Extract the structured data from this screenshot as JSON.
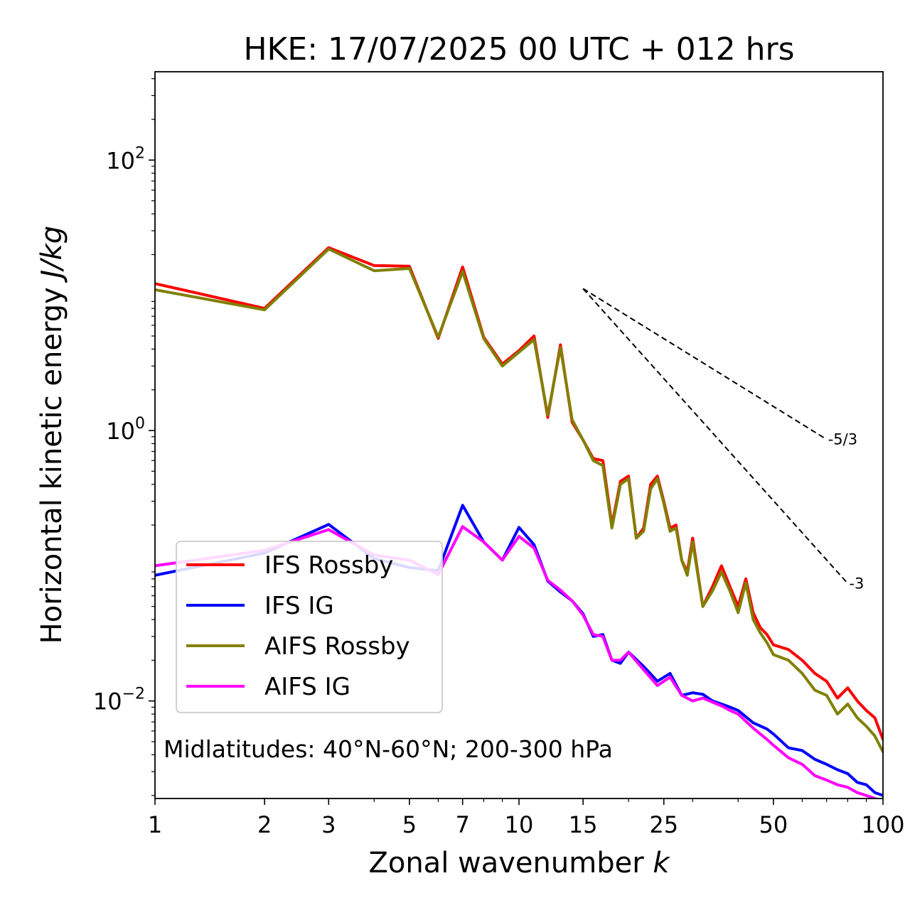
{
  "chart_data": {
    "type": "line",
    "title": "HKE: 17/07/2025 00 UTC + 012 hrs",
    "xlabel": "Zonal wavenumber",
    "xlabel_var": "k",
    "ylabel": "Horizontal kinetic energy",
    "ylabel_unit": "J/kg",
    "xscale": "log",
    "yscale": "log",
    "xlim": [
      1,
      100
    ],
    "ylim": [
      0.0019,
      450
    ],
    "xticks": [
      1,
      2,
      3,
      5,
      7,
      10,
      15,
      25,
      50,
      100
    ],
    "xtick_labels": [
      "1",
      "2",
      "3",
      "5",
      "7",
      "10",
      "15",
      "25",
      "50",
      "100"
    ],
    "yticks": [
      0.01,
      1,
      100
    ],
    "ytick_labels": [
      {
        "base": "10",
        "exp": "−2"
      },
      {
        "base": "10",
        "exp": "0"
      },
      {
        "base": "10",
        "exp": "2"
      }
    ],
    "annotation": "Midlatitudes: 40°N-60°N; 200-300 hPa",
    "legend_position": "lower-left",
    "series": [
      {
        "name": "IFS Rossby",
        "color": "#ff0000",
        "x": [
          1,
          2,
          3,
          4,
          5,
          6,
          7,
          8,
          9,
          10,
          11,
          12,
          13,
          14,
          15,
          16,
          17,
          18,
          19,
          20,
          21,
          22,
          23,
          24,
          25,
          26,
          27,
          28,
          29,
          30,
          32,
          34,
          36,
          38,
          40,
          42,
          44,
          46,
          48,
          50,
          55,
          60,
          65,
          70,
          75,
          80,
          85,
          90,
          95,
          100
        ],
        "y": [
          12.2,
          8.0,
          22.5,
          16.6,
          16.4,
          4.8,
          16.2,
          4.9,
          3.1,
          3.9,
          5.0,
          1.25,
          4.3,
          1.15,
          0.85,
          0.62,
          0.6,
          0.2,
          0.42,
          0.46,
          0.16,
          0.19,
          0.4,
          0.46,
          0.3,
          0.19,
          0.2,
          0.11,
          0.09,
          0.16,
          0.05,
          0.07,
          0.1,
          0.07,
          0.05,
          0.08,
          0.045,
          0.035,
          0.031,
          0.026,
          0.024,
          0.02,
          0.016,
          0.014,
          0.0105,
          0.0125,
          0.01,
          0.0085,
          0.0075,
          0.0052
        ]
      },
      {
        "name": "IFS IG",
        "color": "#0000ff",
        "x": [
          1,
          2,
          3,
          4,
          5,
          6,
          7,
          8,
          9,
          10,
          11,
          12,
          13,
          14,
          15,
          16,
          17,
          18,
          19,
          20,
          22,
          24,
          26,
          28,
          30,
          32,
          34,
          36,
          38,
          40,
          44,
          48,
          50,
          55,
          60,
          65,
          70,
          75,
          80,
          85,
          90,
          95,
          100
        ],
        "y": [
          0.085,
          0.124,
          0.202,
          0.113,
          0.097,
          0.092,
          0.28,
          0.15,
          0.11,
          0.192,
          0.143,
          0.077,
          0.064,
          0.055,
          0.044,
          0.03,
          0.031,
          0.02,
          0.019,
          0.023,
          0.018,
          0.014,
          0.016,
          0.011,
          0.0115,
          0.0112,
          0.01,
          0.0095,
          0.009,
          0.0085,
          0.0069,
          0.0062,
          0.0057,
          0.0045,
          0.0043,
          0.0037,
          0.0034,
          0.0031,
          0.0029,
          0.0025,
          0.0024,
          0.0021,
          0.002
        ]
      },
      {
        "name": "AIFS Rossby",
        "color": "#808000",
        "x": [
          1,
          2,
          3,
          4,
          5,
          6,
          7,
          8,
          9,
          10,
          11,
          12,
          13,
          14,
          15,
          16,
          17,
          18,
          19,
          20,
          21,
          22,
          23,
          24,
          25,
          26,
          27,
          28,
          29,
          30,
          32,
          34,
          36,
          38,
          40,
          42,
          44,
          46,
          48,
          50,
          55,
          60,
          65,
          70,
          75,
          80,
          85,
          90,
          95,
          100
        ],
        "y": [
          11.0,
          7.8,
          22.0,
          15.2,
          15.8,
          4.9,
          15.0,
          4.8,
          3.0,
          3.8,
          4.7,
          1.3,
          4.1,
          1.2,
          0.85,
          0.6,
          0.55,
          0.19,
          0.4,
          0.44,
          0.16,
          0.18,
          0.37,
          0.44,
          0.29,
          0.18,
          0.19,
          0.11,
          0.085,
          0.15,
          0.05,
          0.065,
          0.09,
          0.065,
          0.045,
          0.075,
          0.04,
          0.032,
          0.027,
          0.022,
          0.02,
          0.016,
          0.012,
          0.011,
          0.008,
          0.0095,
          0.0075,
          0.0065,
          0.0055,
          0.0042
        ]
      },
      {
        "name": "AIFS IG",
        "color": "#ff00ff",
        "x": [
          1,
          2,
          3,
          4,
          5,
          6,
          7,
          8,
          9,
          10,
          11,
          12,
          13,
          14,
          15,
          16,
          17,
          18,
          19,
          20,
          22,
          24,
          26,
          28,
          30,
          32,
          34,
          36,
          38,
          40,
          44,
          48,
          50,
          55,
          60,
          65,
          70,
          75,
          80,
          85,
          90,
          95,
          100
        ],
        "y": [
          0.1,
          0.13,
          0.185,
          0.12,
          0.11,
          0.086,
          0.195,
          0.15,
          0.11,
          0.165,
          0.135,
          0.078,
          0.066,
          0.055,
          0.043,
          0.031,
          0.03,
          0.02,
          0.02,
          0.023,
          0.017,
          0.013,
          0.015,
          0.011,
          0.01,
          0.0105,
          0.0098,
          0.0092,
          0.0085,
          0.008,
          0.0063,
          0.0052,
          0.0047,
          0.0038,
          0.0034,
          0.0028,
          0.0026,
          0.0024,
          0.0023,
          0.0021,
          0.002,
          0.0019,
          0.0018
        ]
      }
    ],
    "reference_slopes": [
      {
        "label": "-5/3",
        "x": [
          15,
          70
        ],
        "y": [
          11.2,
          0.86
        ]
      },
      {
        "label": "-3",
        "x": [
          15,
          80
        ],
        "y": [
          11.2,
          0.074
        ]
      }
    ]
  }
}
